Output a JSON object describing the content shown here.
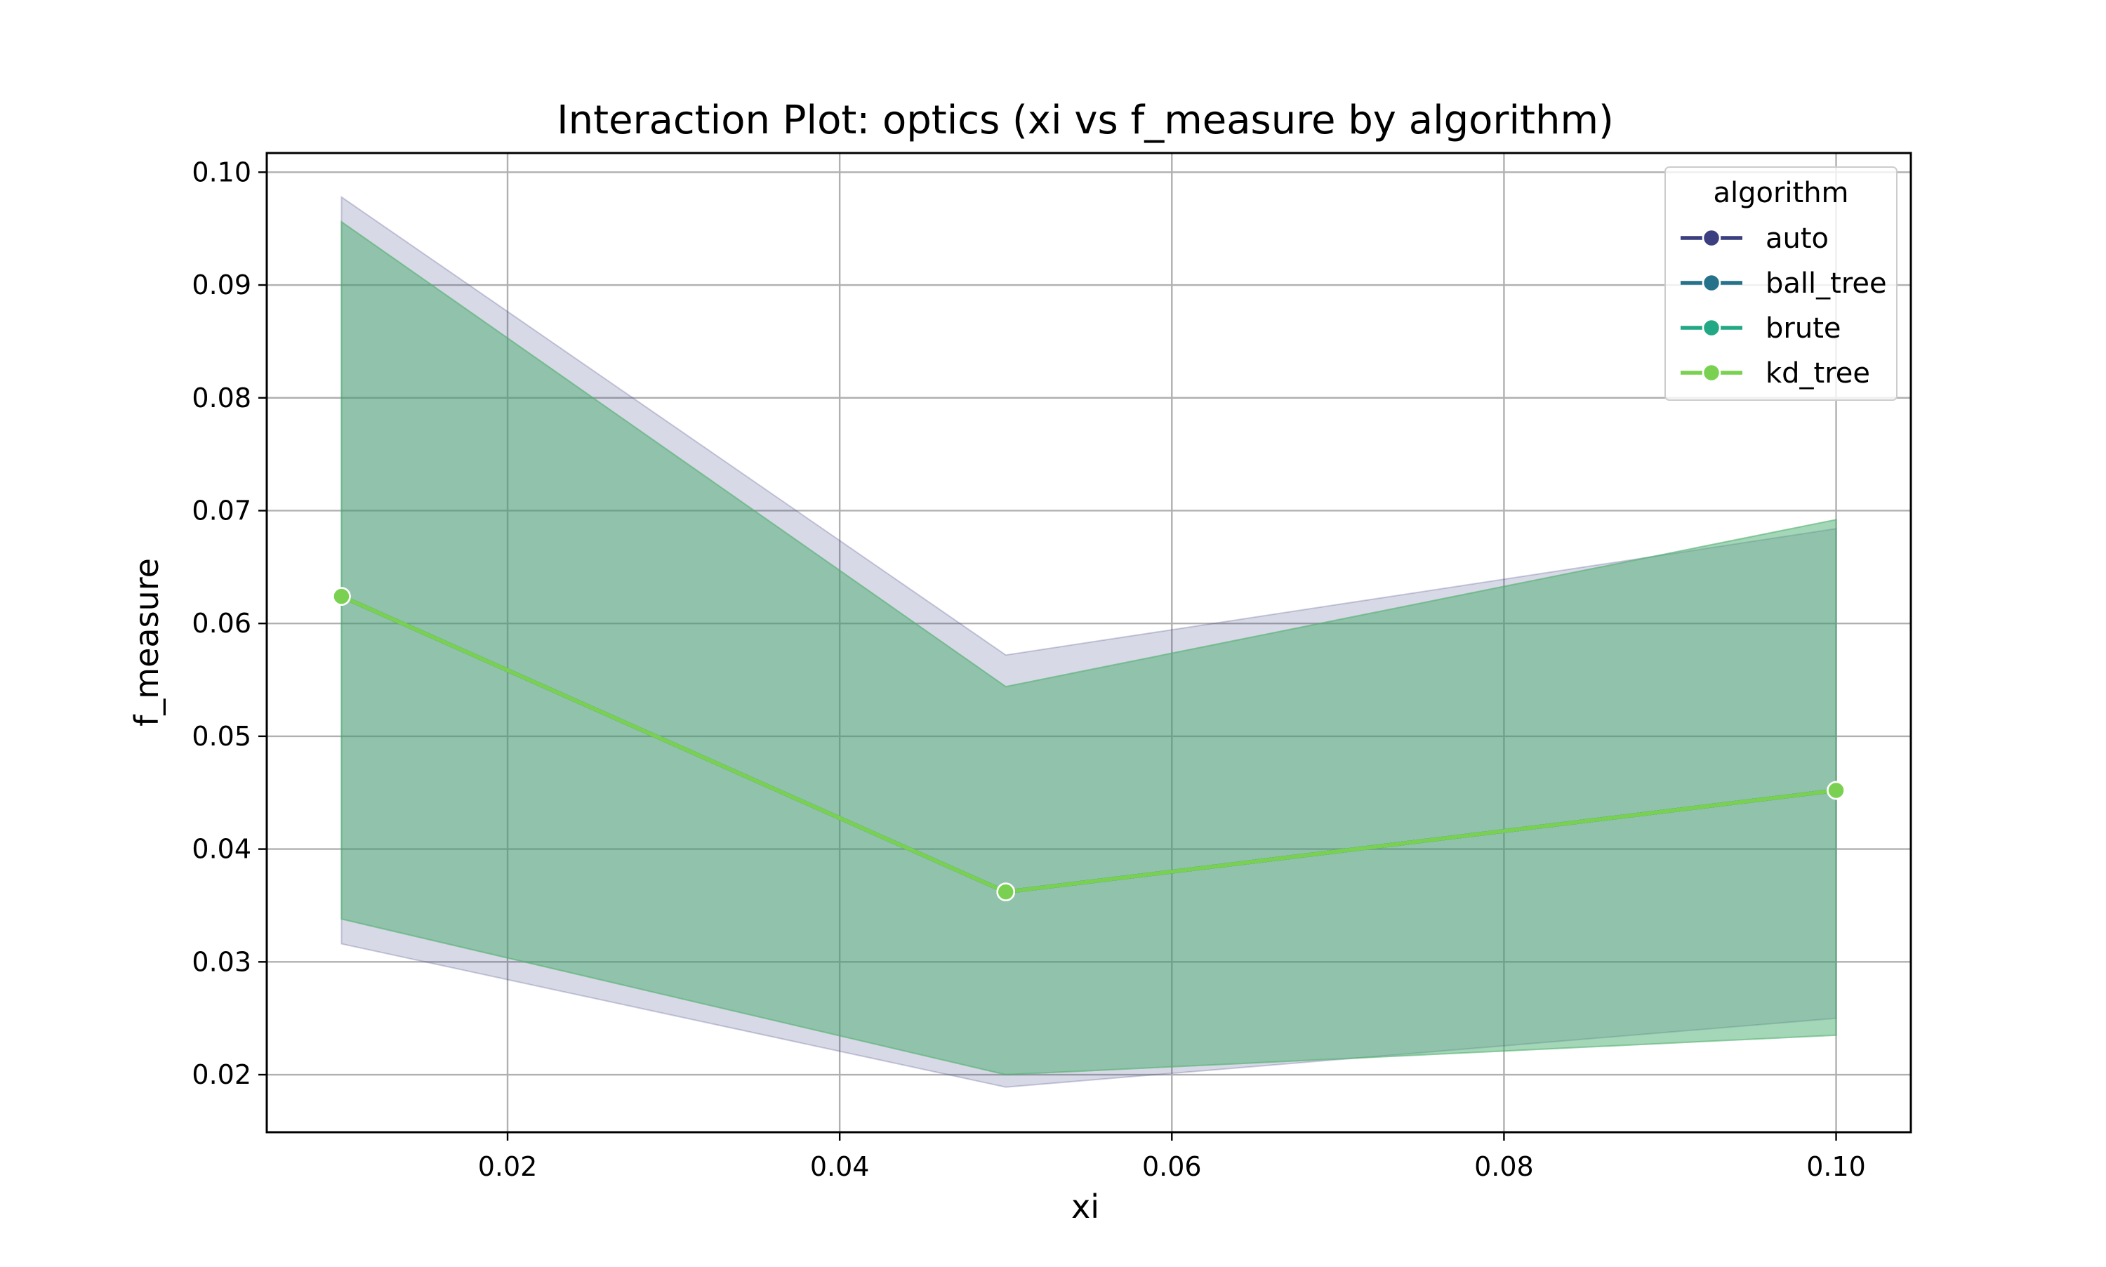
{
  "chart_data": {
    "type": "line",
    "title": "Interaction Plot: optics (xi vs f_measure by algorithm)",
    "xlabel": "xi",
    "ylabel": "f_measure",
    "x": [
      0.01,
      0.05,
      0.1
    ],
    "xlim": [
      0.0055,
      0.1045
    ],
    "ylim": [
      0.0149,
      0.1017
    ],
    "xticks": [
      "0.02",
      "0.04",
      "0.06",
      "0.08",
      "0.10"
    ],
    "xtick_values": [
      0.02,
      0.04,
      0.06,
      0.08,
      0.1
    ],
    "yticks": [
      "0.02",
      "0.03",
      "0.04",
      "0.05",
      "0.06",
      "0.07",
      "0.08",
      "0.09",
      "0.10"
    ],
    "ytick_values": [
      0.02,
      0.03,
      0.04,
      0.05,
      0.06,
      0.07,
      0.08,
      0.09,
      0.1
    ],
    "grid": true,
    "legend": {
      "title": "algorithm",
      "placement": "top-right"
    },
    "series": [
      {
        "name": "auto",
        "color": "#3b3f80",
        "values": [
          0.0624,
          0.0362,
          0.0452
        ],
        "ci_low": [
          0.0316,
          0.0189,
          0.025
        ],
        "ci_high": [
          0.0978,
          0.0572,
          0.0684
        ]
      },
      {
        "name": "ball_tree",
        "color": "#26728a",
        "values": [
          0.0624,
          0.0362,
          0.0452
        ],
        "ci_low": [
          0.0338,
          0.02,
          0.0235
        ],
        "ci_high": [
          0.0956,
          0.0544,
          0.0692
        ]
      },
      {
        "name": "brute",
        "color": "#22a884",
        "values": [
          0.0624,
          0.0362,
          0.0452
        ],
        "ci_low": [
          0.0338,
          0.02,
          0.0235
        ],
        "ci_high": [
          0.0956,
          0.0544,
          0.0692
        ]
      },
      {
        "name": "kd_tree",
        "color": "#7ad151",
        "values": [
          0.0624,
          0.0362,
          0.0452
        ],
        "ci_low": [
          0.0338,
          0.02,
          0.0235
        ],
        "ci_high": [
          0.0956,
          0.0544,
          0.0692
        ]
      }
    ]
  }
}
